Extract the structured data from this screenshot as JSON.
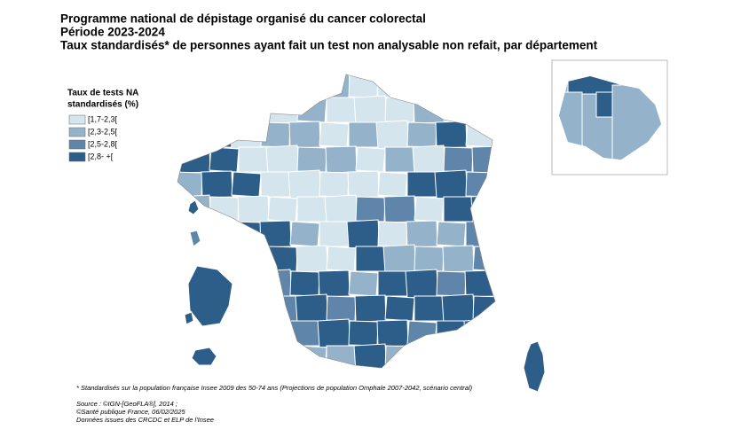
{
  "header": {
    "title_lines": [
      "Programme national de dépistage organisé du cancer colorectal",
      "Période 2023-2024",
      "Taux standardisés* de personnes ayant fait un test non analysable non refait, par département"
    ]
  },
  "legend": {
    "title_lines": [
      "Taux de tests NA",
      "standardisés (%)"
    ],
    "items": [
      {
        "label": "[1,7-2,3[",
        "color": "#d5e5ee"
      },
      {
        "label": "[2,3-2,5[",
        "color": "#94b3cb"
      },
      {
        "label": "[2,5-2,8[",
        "color": "#5f86aa"
      },
      {
        "label": "[2,8- +[",
        "color": "#2d5e89"
      }
    ]
  },
  "footnote": "* Standardisés sur la population française Insee 2009 des 50-74 ans (Projections de population Omphale 2007-2042, scénario central)",
  "source_lines": [
    "Source : ©IGN-[GeoFLA®], 2014 ;",
    "©Santé publique France, 06/02/2025",
    "Données issues des CRCDC et ELP de l'Insee"
  ]
}
